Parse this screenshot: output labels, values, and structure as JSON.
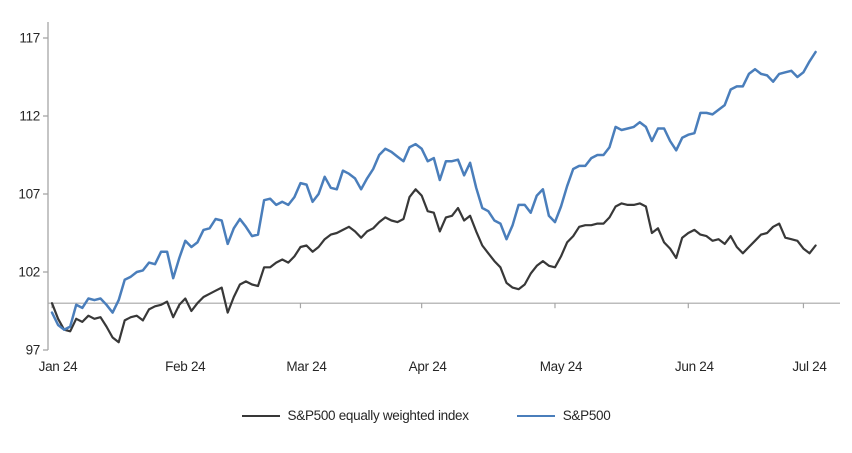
{
  "chart_data": {
    "type": "line",
    "title": "",
    "xlabel": "",
    "ylabel": "",
    "x_unit": "trading-day index, Jan 2 2024 = 0",
    "x_tick_labels": [
      "Jan 24",
      "Feb 24",
      "Mar 24",
      "Apr 24",
      "May 24",
      "Jun 24",
      "Jul 24"
    ],
    "x_tick_days": [
      0,
      21,
      41,
      61,
      83,
      105,
      124
    ],
    "y_ticks": [
      97,
      102,
      107,
      112,
      117
    ],
    "ylim": [
      97,
      118
    ],
    "baseline_value": 100,
    "grid": "off",
    "legend_position": "bottom-center",
    "axis_color": "#a6a6a6",
    "baseline_color": "#a6a6a6",
    "series": [
      {
        "name": "S&P500 equally weighted index",
        "color": "#383838",
        "width": 2.2,
        "values": [
          100.0,
          99.0,
          98.3,
          98.2,
          99.0,
          98.8,
          99.2,
          99.0,
          99.1,
          98.5,
          97.8,
          97.5,
          98.9,
          99.1,
          99.2,
          98.9,
          99.6,
          99.8,
          99.9,
          100.1,
          99.1,
          99.9,
          100.3,
          99.5,
          100.0,
          100.4,
          100.6,
          100.8,
          101.0,
          99.4,
          100.4,
          101.2,
          101.4,
          101.2,
          101.1,
          102.3,
          102.3,
          102.6,
          102.8,
          102.6,
          103.0,
          103.6,
          103.7,
          103.3,
          103.6,
          104.1,
          104.4,
          104.5,
          104.7,
          104.9,
          104.6,
          104.2,
          104.6,
          104.8,
          105.2,
          105.5,
          105.3,
          105.2,
          105.4,
          106.8,
          107.3,
          106.9,
          105.9,
          105.8,
          104.6,
          105.5,
          105.6,
          106.1,
          105.3,
          105.6,
          104.6,
          103.7,
          103.2,
          102.7,
          102.3,
          101.3,
          101.0,
          100.9,
          101.2,
          101.9,
          102.4,
          102.7,
          102.4,
          102.3,
          103.0,
          103.9,
          104.3,
          104.9,
          105.0,
          105.0,
          105.1,
          105.1,
          105.5,
          106.2,
          106.4,
          106.3,
          106.3,
          106.4,
          106.2,
          104.5,
          104.8,
          103.9,
          103.5,
          102.9,
          104.2,
          104.5,
          104.7,
          104.4,
          104.3,
          104.0,
          104.1,
          103.8,
          104.3,
          103.6,
          103.2,
          103.6,
          104.0,
          104.4,
          104.5,
          104.9,
          105.1,
          104.2,
          104.1,
          104.0,
          103.5,
          103.2,
          103.7
        ]
      },
      {
        "name": "S&P500",
        "color": "#4a7ebb",
        "width": 2.5,
        "values": [
          99.4,
          98.6,
          98.3,
          98.5,
          99.9,
          99.7,
          100.3,
          100.2,
          100.3,
          99.9,
          99.4,
          100.2,
          101.5,
          101.7,
          102.0,
          102.1,
          102.6,
          102.5,
          103.3,
          103.3,
          101.6,
          102.9,
          104.0,
          103.6,
          103.9,
          104.7,
          104.8,
          105.4,
          105.3,
          103.8,
          104.8,
          105.4,
          104.9,
          104.3,
          104.4,
          106.6,
          106.7,
          106.3,
          106.5,
          106.3,
          106.8,
          107.7,
          107.6,
          106.5,
          107.0,
          108.1,
          107.4,
          107.3,
          108.5,
          108.3,
          108.0,
          107.3,
          108.0,
          108.6,
          109.5,
          109.9,
          109.7,
          109.4,
          109.1,
          110.0,
          110.2,
          109.9,
          109.1,
          109.3,
          107.9,
          109.1,
          109.1,
          109.2,
          108.2,
          109.0,
          107.4,
          106.1,
          105.9,
          105.3,
          105.1,
          104.1,
          105.0,
          106.3,
          106.3,
          105.8,
          106.9,
          107.3,
          105.6,
          105.2,
          106.2,
          107.5,
          108.6,
          108.8,
          108.8,
          109.3,
          109.5,
          109.5,
          110.0,
          111.3,
          111.1,
          111.2,
          111.3,
          111.6,
          111.3,
          110.4,
          111.2,
          111.2,
          110.4,
          109.8,
          110.6,
          110.8,
          110.9,
          112.2,
          112.2,
          112.1,
          112.4,
          112.7,
          113.7,
          113.9,
          113.9,
          114.7,
          115.0,
          114.7,
          114.6,
          114.2,
          114.7,
          114.8,
          114.9,
          114.5,
          114.8,
          115.5,
          116.1
        ]
      }
    ]
  }
}
